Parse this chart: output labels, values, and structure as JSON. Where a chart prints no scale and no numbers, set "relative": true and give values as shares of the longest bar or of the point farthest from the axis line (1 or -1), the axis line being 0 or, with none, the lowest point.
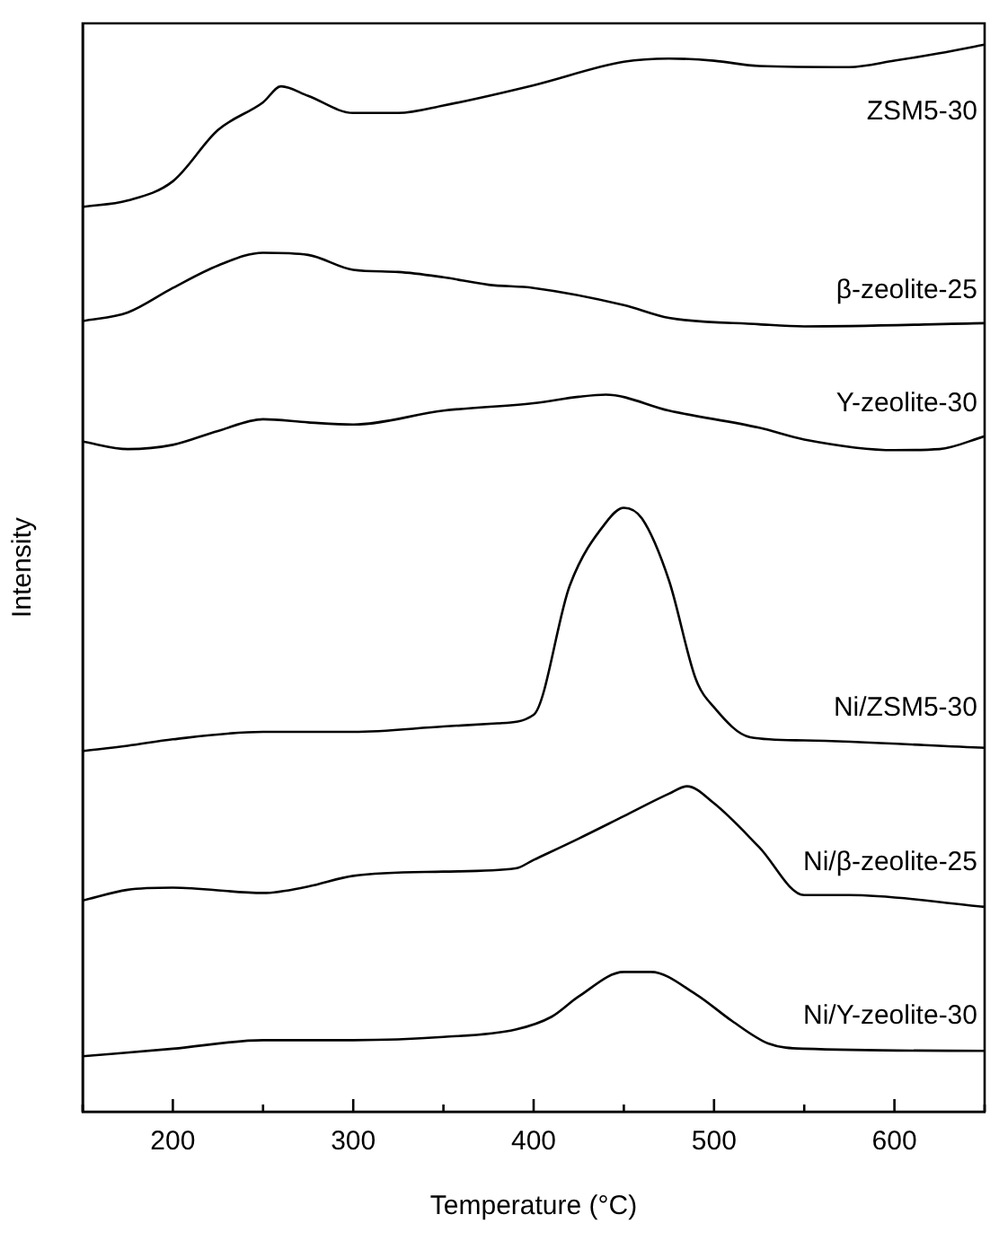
{
  "chart_data": {
    "type": "line",
    "relative": true,
    "xlabel": "Temperature (°C)",
    "ylabel": "Intensity",
    "xlim": [
      150,
      650
    ],
    "xticks": [
      {
        "value": 150,
        "label": null
      },
      200,
      {
        "value": 250,
        "label": null
      },
      300,
      {
        "value": 350,
        "label": null
      },
      400,
      {
        "value": 450,
        "label": null
      },
      500,
      {
        "value": 550,
        "label": null
      },
      600,
      {
        "value": 650,
        "label": null
      }
    ],
    "legend": false,
    "grid": false,
    "marker": "none",
    "line_style": "solid",
    "series": [
      {
        "name": "ZSM5-30",
        "color": "#000000",
        "x": [
          150,
          175,
          200,
          225,
          250,
          260,
          275,
          300,
          325,
          350,
          400,
          450,
          475,
          500,
          525,
          575,
          600,
          625,
          650
        ],
        "values": [
          0.848,
          0.854,
          0.872,
          0.92,
          0.946,
          0.961,
          0.952,
          0.936,
          0.936,
          0.943,
          0.962,
          0.984,
          0.987,
          0.985,
          0.98,
          0.979,
          0.985,
          0.992,
          1.0
        ]
      },
      {
        "name": "β-zeolite-25",
        "color": "#000000",
        "x": [
          150,
          175,
          200,
          225,
          250,
          275,
          300,
          325,
          350,
          375,
          400,
          450,
          475,
          525,
          550,
          650
        ],
        "values": [
          0.741,
          0.749,
          0.772,
          0.793,
          0.805,
          0.803,
          0.789,
          0.787,
          0.782,
          0.775,
          0.772,
          0.756,
          0.744,
          0.738,
          0.736,
          0.739
        ]
      },
      {
        "name": "Y-zeolite-30",
        "color": "#000000",
        "x": [
          150,
          175,
          200,
          225,
          250,
          275,
          300,
          350,
          400,
          425,
          440,
          475,
          525,
          550,
          600,
          625,
          650
        ],
        "values": [
          0.628,
          0.621,
          0.625,
          0.638,
          0.649,
          0.646,
          0.644,
          0.657,
          0.664,
          0.67,
          0.672,
          0.657,
          0.641,
          0.63,
          0.62,
          0.621,
          0.633
        ]
      },
      {
        "name": "Ni/ZSM5-30",
        "color": "#000000",
        "x": [
          150,
          175,
          200,
          250,
          300,
          350,
          380,
          400,
          420,
          440,
          450,
          460,
          475,
          490,
          500,
          520,
          550,
          650
        ],
        "values": [
          0.338,
          0.343,
          0.349,
          0.356,
          0.356,
          0.361,
          0.364,
          0.372,
          0.493,
          0.552,
          0.566,
          0.556,
          0.498,
          0.405,
          0.379,
          0.351,
          0.348,
          0.341
        ]
      },
      {
        "name": "Ni/β-zeolite-25",
        "color": "#000000",
        "x": [
          150,
          175,
          200,
          250,
          275,
          300,
          350,
          390,
          400,
          425,
          450,
          475,
          485,
          500,
          525,
          550,
          575,
          650
        ],
        "values": [
          0.198,
          0.208,
          0.21,
          0.205,
          0.211,
          0.221,
          0.225,
          0.228,
          0.236,
          0.256,
          0.277,
          0.298,
          0.305,
          0.289,
          0.248,
          0.203,
          0.203,
          0.192
        ]
      },
      {
        "name": "Ni/Y-zeolite-30",
        "color": "#000000",
        "x": [
          150,
          200,
          250,
          300,
          350,
          390,
          410,
          425,
          450,
          465,
          490,
          510,
          530,
          550,
          650
        ],
        "values": [
          0.052,
          0.059,
          0.067,
          0.067,
          0.07,
          0.077,
          0.089,
          0.108,
          0.131,
          0.131,
          0.11,
          0.085,
          0.064,
          0.059,
          0.057
        ]
      }
    ]
  }
}
